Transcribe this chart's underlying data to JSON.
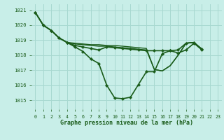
{
  "background_color": "#c8eee8",
  "grid_color": "#a8d8d0",
  "line_color": "#1a5c1a",
  "xlabel": "Graphe pression niveau de la mer (hPa)",
  "xlim": [
    -0.5,
    23.5
  ],
  "ylim": [
    1014.4,
    1021.4
  ],
  "yticks": [
    1015,
    1016,
    1017,
    1018,
    1019,
    1020,
    1021
  ],
  "xticks": [
    0,
    1,
    2,
    3,
    4,
    5,
    6,
    7,
    8,
    9,
    10,
    11,
    12,
    13,
    14,
    15,
    16,
    17,
    18,
    19,
    20,
    21,
    22,
    23
  ],
  "lines": [
    {
      "x": [
        0,
        1,
        2,
        3,
        4,
        5,
        6,
        7,
        8,
        9,
        10,
        11,
        12,
        13,
        14,
        15,
        16,
        17,
        18,
        19,
        20,
        21
      ],
      "y": [
        1020.85,
        1020.0,
        1019.65,
        1019.15,
        1018.85,
        1018.55,
        1018.25,
        1017.75,
        1017.45,
        1016.0,
        1015.15,
        1015.1,
        1015.2,
        1016.05,
        1016.9,
        1016.9,
        1018.1,
        1018.3,
        1018.15,
        1018.35,
        1018.8,
        1018.35
      ],
      "markers": true
    },
    {
      "x": [
        0,
        1,
        2,
        3,
        4,
        5,
        6,
        7,
        8,
        9,
        10,
        11,
        12,
        13,
        14,
        15,
        16,
        17,
        18,
        19,
        20,
        21
      ],
      "y": [
        1020.85,
        1020.0,
        1019.65,
        1019.15,
        1018.85,
        1018.65,
        1018.55,
        1018.45,
        1018.35,
        1018.55,
        1018.5,
        1018.45,
        1018.4,
        1018.35,
        1018.3,
        1018.3,
        1018.3,
        1018.3,
        1018.35,
        1018.8,
        1018.85,
        1018.4
      ],
      "markers": true
    },
    {
      "x": [
        0,
        1,
        2,
        3,
        4,
        5,
        6,
        7,
        8,
        9,
        10,
        11,
        12,
        13,
        14,
        15,
        16,
        17,
        18,
        19,
        20,
        21
      ],
      "y": [
        1020.85,
        1020.0,
        1019.65,
        1019.15,
        1018.85,
        1018.75,
        1018.7,
        1018.65,
        1018.6,
        1018.6,
        1018.55,
        1018.5,
        1018.45,
        1018.4,
        1018.35,
        1017.05,
        1016.95,
        1017.3,
        1018.0,
        1018.8,
        1018.85,
        1018.4
      ],
      "markers": false
    },
    {
      "x": [
        0,
        1,
        2,
        3,
        4,
        5,
        6,
        7,
        8,
        9,
        10,
        11,
        12,
        13,
        14,
        15,
        16,
        17,
        18,
        19,
        20,
        21
      ],
      "y": [
        1020.85,
        1020.0,
        1019.65,
        1019.15,
        1018.85,
        1018.8,
        1018.75,
        1018.7,
        1018.7,
        1018.65,
        1018.65,
        1018.6,
        1018.55,
        1018.5,
        1018.45,
        1017.05,
        1016.95,
        1017.3,
        1018.0,
        1018.8,
        1018.85,
        1018.4
      ],
      "markers": false
    }
  ]
}
